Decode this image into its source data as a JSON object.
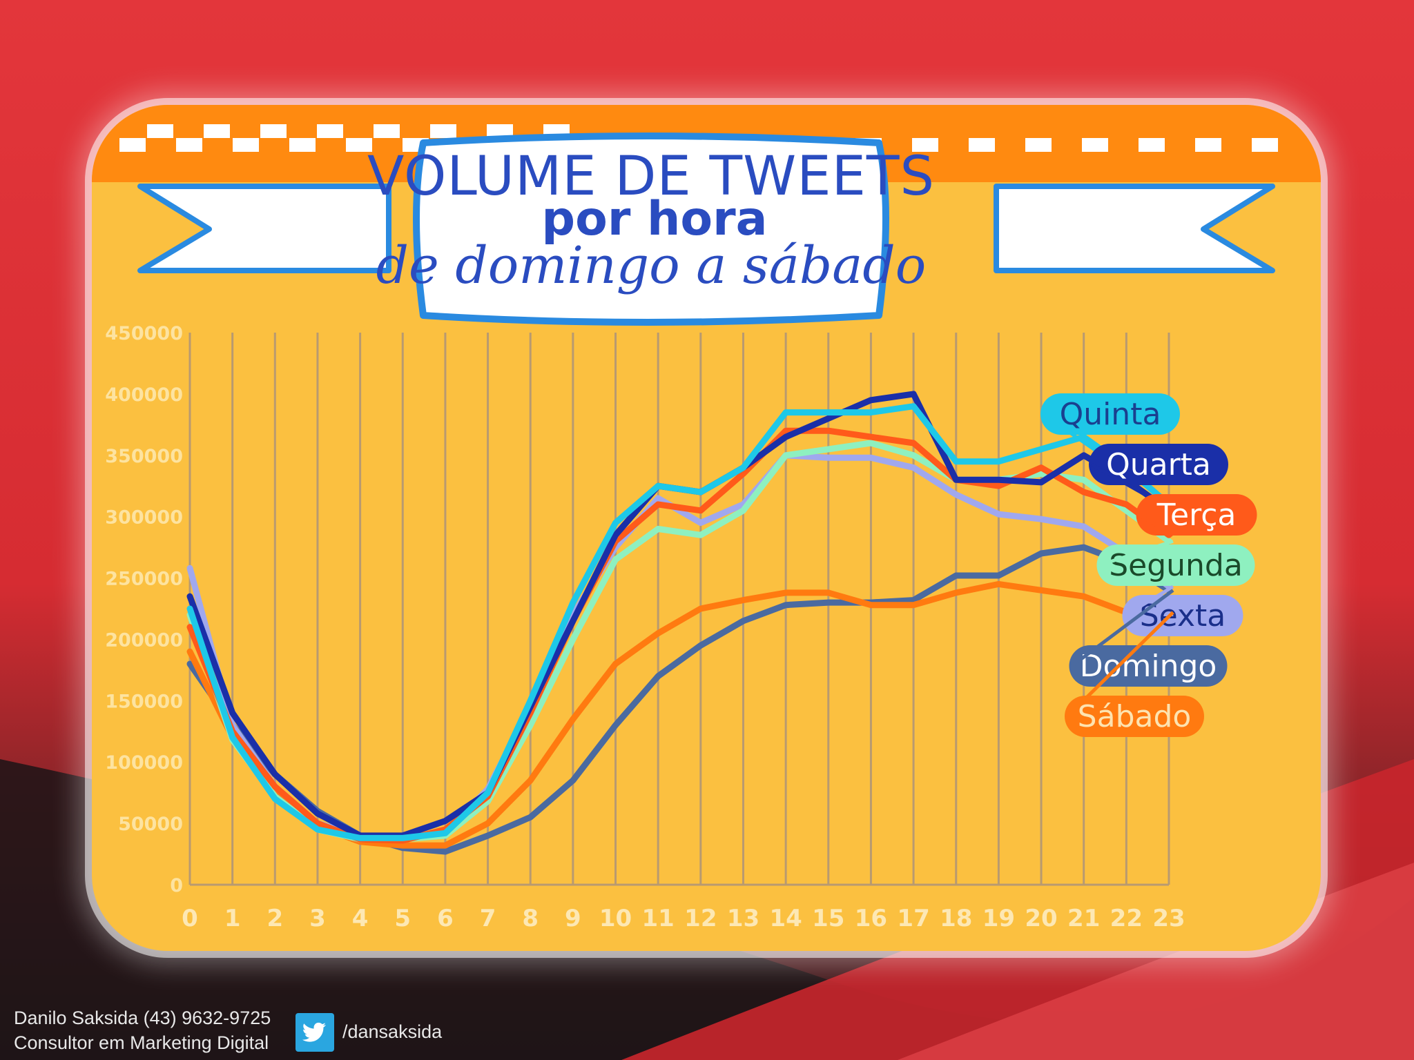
{
  "chart_data": {
    "type": "line",
    "title": "VOLUME DE TWEETS",
    "subtitle_bold": "por hora",
    "subtitle_script": "de domingo a sábado",
    "xlabel": "",
    "ylabel": "",
    "ylim": [
      0,
      450000
    ],
    "y_ticks": [
      "450000",
      "400000",
      "350000",
      "300000",
      "250000",
      "200000",
      "150000",
      "100000",
      "50000",
      "0"
    ],
    "x": [
      "0",
      "1",
      "2",
      "3",
      "4",
      "5",
      "6",
      "7",
      "8",
      "9",
      "10",
      "11",
      "12",
      "13",
      "14",
      "15",
      "16",
      "17",
      "18",
      "19",
      "20",
      "21",
      "22",
      "23"
    ],
    "grid": "vertical",
    "legend_position": "right",
    "series": [
      {
        "name": "Quinta",
        "color": "#1ec8e8",
        "label_bg": "#1ec8e8",
        "label_fg": "#1a3f8f",
        "values": [
          225000,
          120000,
          70000,
          45000,
          38000,
          38000,
          42000,
          75000,
          150000,
          230000,
          295000,
          325000,
          320000,
          340000,
          385000,
          385000,
          385000,
          390000,
          345000,
          345000,
          355000,
          365000,
          340000,
          310000
        ]
      },
      {
        "name": "Quarta",
        "color": "#1a2fa8",
        "label_bg": "#1a2fa8",
        "label_fg": "#ffffff",
        "values": [
          235000,
          140000,
          90000,
          58000,
          40000,
          40000,
          52000,
          75000,
          145000,
          215000,
          285000,
          325000,
          320000,
          340000,
          365000,
          380000,
          395000,
          400000,
          330000,
          330000,
          328000,
          350000,
          330000,
          305000
        ]
      },
      {
        "name": "Terça",
        "color": "#ff5a1a",
        "label_bg": "#ff5a1a",
        "label_fg": "#ffffff",
        "values": [
          210000,
          125000,
          80000,
          50000,
          37000,
          36000,
          45000,
          72000,
          140000,
          215000,
          280000,
          310000,
          305000,
          335000,
          370000,
          370000,
          365000,
          360000,
          330000,
          325000,
          340000,
          320000,
          310000,
          285000
        ]
      },
      {
        "name": "Segunda",
        "color": "#8ef0c0",
        "label_bg": "#8ef0c0",
        "label_fg": "#1a4a2a",
        "values": [
          220000,
          118000,
          72000,
          45000,
          37000,
          37000,
          40000,
          68000,
          130000,
          200000,
          265000,
          290000,
          285000,
          305000,
          350000,
          355000,
          360000,
          350000,
          330000,
          330000,
          335000,
          330000,
          305000,
          280000
        ]
      },
      {
        "name": "Sexta",
        "color": "#a0a8ee",
        "label_bg": "#a0a8ee",
        "label_fg": "#1a2f8a",
        "values": [
          258000,
          130000,
          80000,
          50000,
          40000,
          37000,
          42000,
          78000,
          145000,
          220000,
          275000,
          315000,
          295000,
          310000,
          350000,
          348000,
          348000,
          340000,
          318000,
          302000,
          298000,
          292000,
          270000,
          243000
        ]
      },
      {
        "name": "Domingo",
        "color": "#4a6aa0",
        "label_bg": "#4a6aa0",
        "label_fg": "#ffffff",
        "values": [
          180000,
          130000,
          90000,
          60000,
          40000,
          30000,
          27000,
          40000,
          55000,
          85000,
          130000,
          170000,
          195000,
          215000,
          228000,
          230000,
          230000,
          232000,
          252000,
          252000,
          270000,
          275000,
          262000,
          240000
        ]
      },
      {
        "name": "Sábado",
        "color": "#ff7a10",
        "label_bg": "#ff7a10",
        "label_fg": "#fde3b0",
        "values": [
          190000,
          120000,
          75000,
          48000,
          35000,
          32000,
          32000,
          50000,
          85000,
          135000,
          180000,
          205000,
          225000,
          232000,
          238000,
          238000,
          228000,
          228000,
          238000,
          245000,
          240000,
          235000,
          222000,
          222000
        ]
      }
    ]
  },
  "footer": {
    "contact": "Danilo Saksida (43) 9632-9725",
    "role": "Consultor em Marketing Digital",
    "twitter_handle": "/dansaksida",
    "twitter_icon": "twitter-bird-icon"
  }
}
